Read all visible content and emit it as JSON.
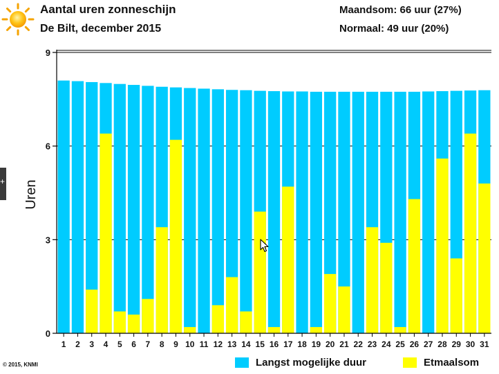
{
  "header": {
    "title": "Aantal uren zonneschijn",
    "subtitle": "De Bilt, december 2015",
    "month_total": "Maandsom: 66 uur (27%)",
    "normal": "Normaal: 49 uur (20%)"
  },
  "footer": {
    "copyright": "© 2015, KNMI"
  },
  "legend": {
    "items": [
      {
        "label": "Langst mogelijke duur",
        "color": "#00ccff"
      },
      {
        "label": "Etmaalsom",
        "color": "#ffff00"
      }
    ]
  },
  "icons": {
    "sun": "sun-icon",
    "cursor": "mouse-pointer-icon",
    "side_tab": "panel-tab-icon"
  },
  "colors": {
    "max_duration": "#00ccff",
    "daily_sum": "#ffff00",
    "grid": "#000000"
  },
  "chart_data": {
    "type": "bar",
    "title": "Aantal uren zonneschijn",
    "xlabel": "",
    "ylabel": "Uren",
    "ylim": [
      0,
      9
    ],
    "yticks": [
      0,
      3,
      6,
      9
    ],
    "grid": true,
    "legend_position": "bottom-right",
    "categories": [
      "1",
      "2",
      "3",
      "4",
      "5",
      "6",
      "7",
      "8",
      "9",
      "10",
      "11",
      "12",
      "13",
      "14",
      "15",
      "16",
      "17",
      "18",
      "19",
      "20",
      "21",
      "22",
      "23",
      "24",
      "25",
      "26",
      "27",
      "28",
      "29",
      "30",
      "31"
    ],
    "series": [
      {
        "name": "Langst mogelijke duur",
        "color": "#00ccff",
        "values": [
          8.1,
          8.08,
          8.05,
          8.02,
          7.99,
          7.96,
          7.93,
          7.9,
          7.88,
          7.86,
          7.84,
          7.82,
          7.8,
          7.79,
          7.77,
          7.76,
          7.75,
          7.75,
          7.74,
          7.74,
          7.74,
          7.74,
          7.74,
          7.74,
          7.74,
          7.74,
          7.75,
          7.76,
          7.77,
          7.78,
          7.79
        ]
      },
      {
        "name": "Etmaalsom",
        "color": "#ffff00",
        "values": [
          0,
          0,
          1.4,
          6.4,
          0.7,
          0.6,
          1.1,
          3.4,
          6.2,
          0.2,
          0,
          0.9,
          1.8,
          0.7,
          3.9,
          0.2,
          4.7,
          0,
          0.2,
          1.9,
          1.5,
          0,
          3.4,
          2.9,
          0.2,
          4.3,
          0,
          5.6,
          2.4,
          6.4,
          4.8
        ]
      }
    ]
  }
}
